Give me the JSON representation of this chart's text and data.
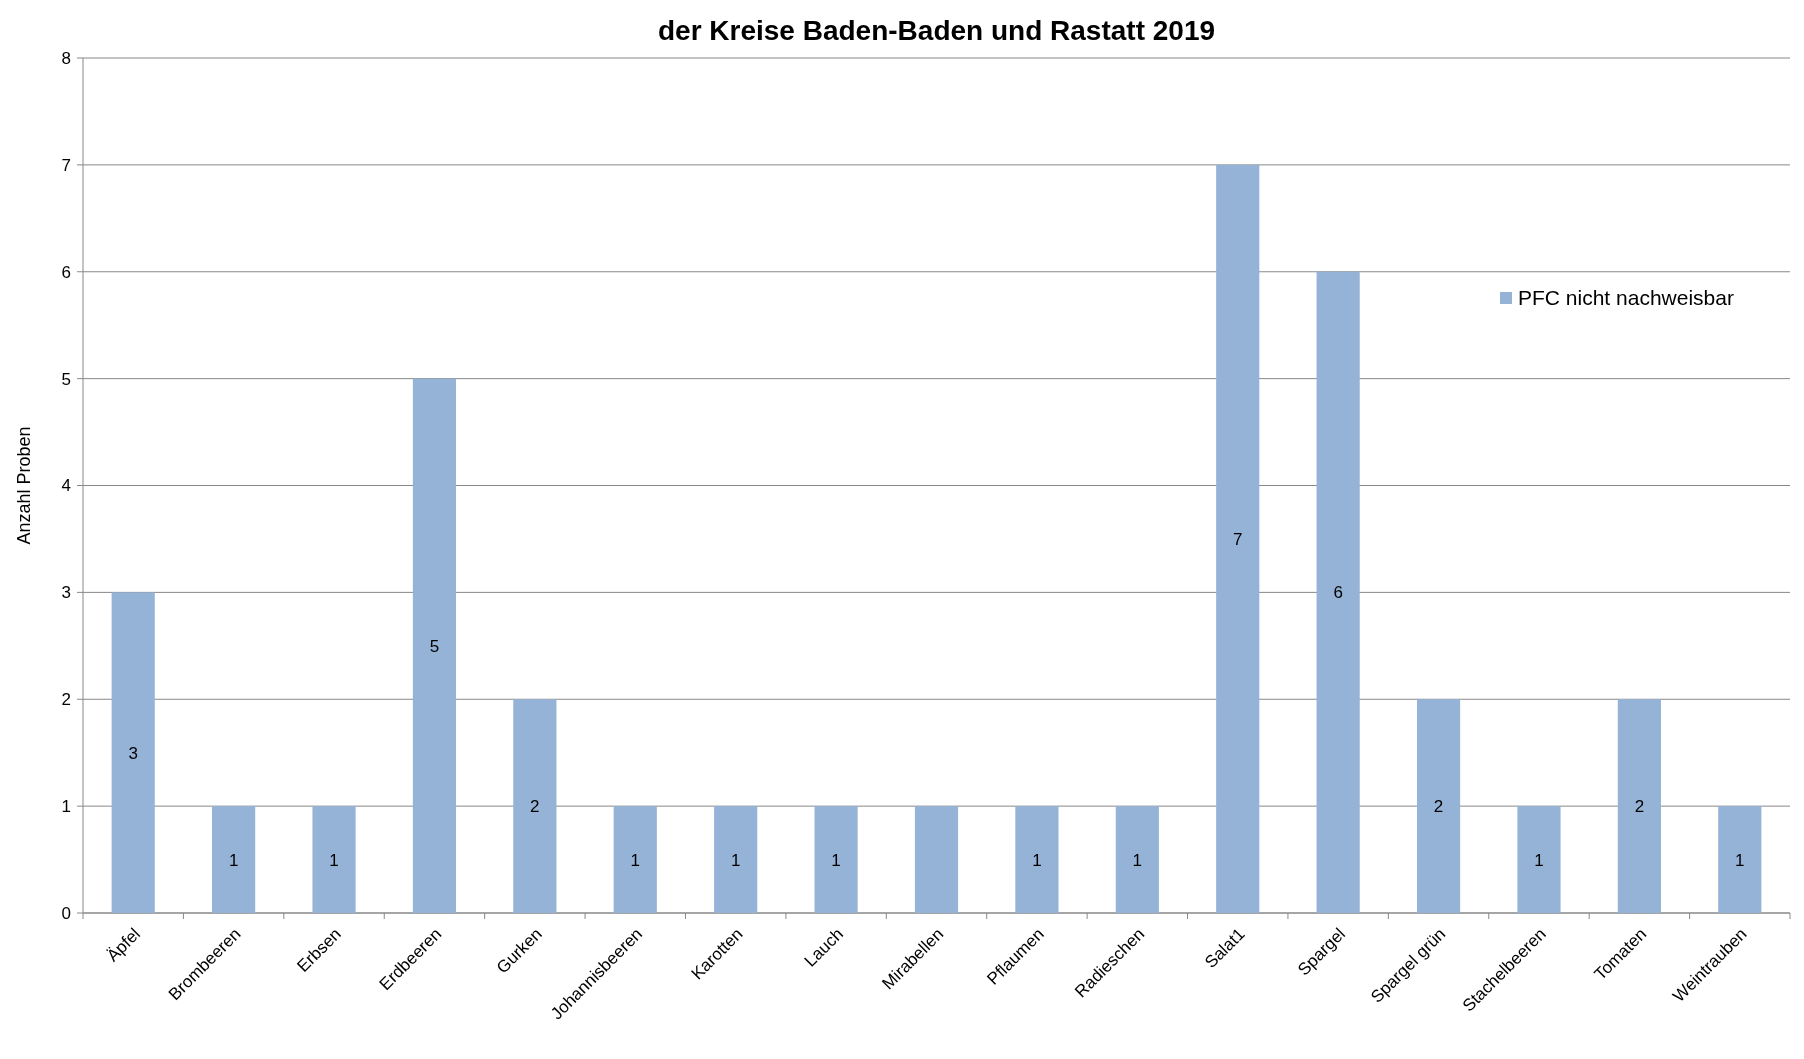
{
  "chart_data": {
    "type": "bar",
    "title": "der Kreise Baden-Baden und Rastatt 2019",
    "ylabel": "Anzahl Proben",
    "categories": [
      "Äpfel",
      "Brombeeren",
      "Erbsen",
      "Erdbeeren",
      "Gurken",
      "Johannisbeeren",
      "Karotten",
      "Lauch",
      "Mirabellen",
      "Pflaumen",
      "Radieschen",
      "Salat1",
      "Spargel",
      "Spargel grün",
      "Stachelbeeren",
      "Tomaten",
      "Weintrauben"
    ],
    "series": [
      {
        "name": "PFC nicht nachweisbar",
        "color": "#95b3d7",
        "values": [
          3,
          1,
          1,
          5,
          2,
          1,
          1,
          1,
          1,
          1,
          1,
          7,
          6,
          2,
          1,
          2,
          1
        ],
        "value_labels": [
          "3",
          "1",
          "1",
          "5",
          "2",
          "1",
          "1",
          "1",
          null,
          "1",
          "1",
          "7",
          "6",
          "2",
          "1",
          "2",
          "1"
        ]
      }
    ],
    "ylim": [
      0,
      8
    ],
    "yticks": [
      0,
      1,
      2,
      3,
      4,
      5,
      6,
      7,
      8
    ],
    "grid": "y",
    "legend": "top right"
  }
}
